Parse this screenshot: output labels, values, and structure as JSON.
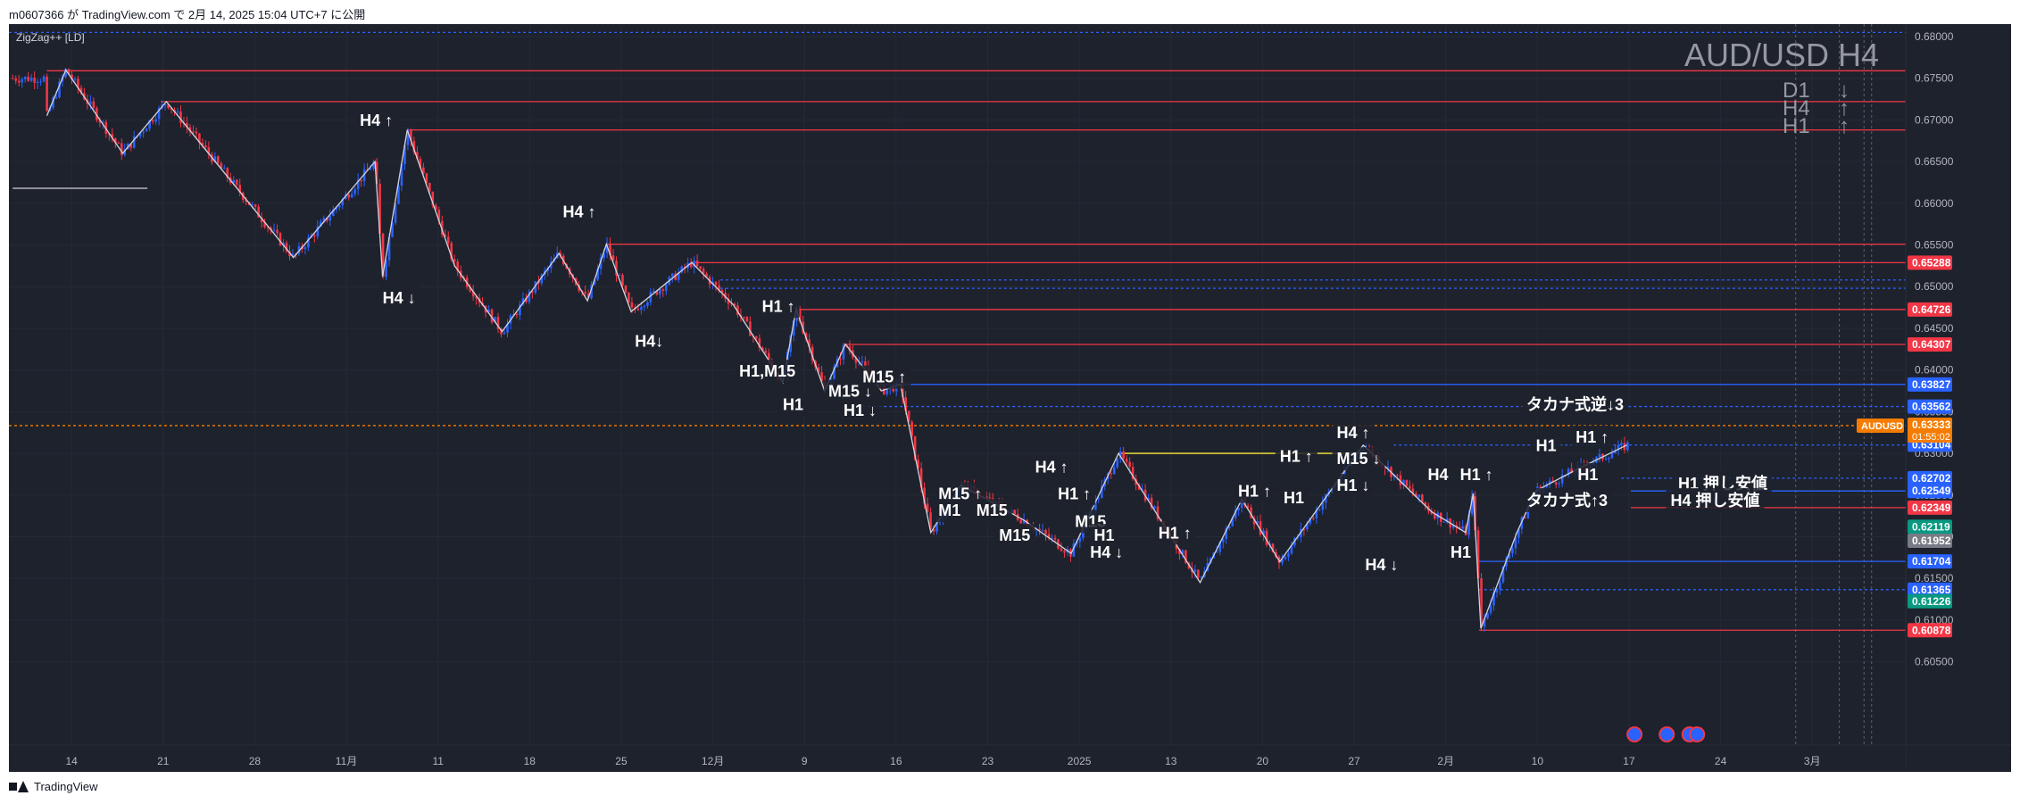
{
  "header": {
    "publisher_line": "m0607366 が TradingView.com で 2月 14, 2025 15:04 UTC+7 に公開"
  },
  "footer": {
    "brand": "TradingView"
  },
  "indicator": {
    "label": "ZigZag++ [LD]"
  },
  "colors": {
    "background": "#1e222d",
    "up": "#2962ff",
    "down": "#f23645",
    "resistance": "#f23645",
    "support": "#2962ff",
    "zigzag": "#d1d4dc",
    "grid": "#2a2e39",
    "price_label": "#f57c00"
  },
  "chart_data": {
    "type": "candlestick",
    "title": "AUD/USD H4",
    "symbol": "AUDUSD",
    "last_price": "0.63333",
    "countdown": "01:55:02",
    "ylim": [
      0.595,
      0.6815
    ],
    "y_ticks": [
      "0.68000",
      "0.67500",
      "0.67000",
      "0.66500",
      "0.66000",
      "0.65500",
      "0.65000",
      "0.64500",
      "0.64000",
      "0.63500",
      "0.63000",
      "0.62500",
      "0.62000",
      "0.61500",
      "0.61000",
      "0.60500"
    ],
    "x_ticks": [
      "14",
      "21",
      "28",
      "11月",
      "11",
      "18",
      "25",
      "12月",
      "9",
      "16",
      "23",
      "2025",
      "13",
      "20",
      "27",
      "2月",
      "10",
      "17",
      "24",
      "3月"
    ],
    "trend_summary": [
      {
        "tf": "D1",
        "arrow": "↓"
      },
      {
        "tf": "H4",
        "arrow": "↑"
      },
      {
        "tf": "H1",
        "arrow": "↑"
      }
    ],
    "price_tags": [
      {
        "value": "0.65288",
        "color": "#f23645"
      },
      {
        "value": "0.64726",
        "color": "#f23645"
      },
      {
        "value": "0.64307",
        "color": "#f23645"
      },
      {
        "value": "0.63827",
        "color": "#2962ff"
      },
      {
        "value": "0.63562",
        "color": "#2962ff"
      },
      {
        "value": "0.63104",
        "color": "#2962ff"
      },
      {
        "value": "0.62702",
        "color": "#2962ff"
      },
      {
        "value": "0.62549",
        "color": "#2962ff"
      },
      {
        "value": "0.62349",
        "color": "#f23645"
      },
      {
        "value": "0.62119",
        "color": "#089981"
      },
      {
        "value": "0.61952",
        "color": "#787b86"
      },
      {
        "value": "0.61704",
        "color": "#2962ff"
      },
      {
        "value": "0.61365",
        "color": "#2962ff"
      },
      {
        "value": "0.61226",
        "color": "#089981"
      },
      {
        "value": "0.60878",
        "color": "#f23645"
      }
    ],
    "levels": [
      {
        "price": 0.6805,
        "color": "#2962ff",
        "dashed": true,
        "x0": 0
      },
      {
        "price": 0.6759,
        "color": "#f23645",
        "x0": 0.02
      },
      {
        "price": 0.6722,
        "color": "#f23645",
        "x0": 0.08
      },
      {
        "price": 0.6688,
        "color": "#f23645",
        "x0": 0.21
      },
      {
        "price": 0.6551,
        "color": "#f23645",
        "x0": 0.315
      },
      {
        "price": 0.65288,
        "color": "#f23645",
        "x0": 0.36
      },
      {
        "price": 0.6508,
        "color": "#2962ff",
        "dashed": true,
        "x0": 0.375
      },
      {
        "price": 0.6498,
        "color": "#2962ff",
        "dashed": true,
        "x0": 0.375
      },
      {
        "price": 0.64726,
        "color": "#f23645",
        "x0": 0.415
      },
      {
        "price": 0.64307,
        "color": "#f23645",
        "x0": 0.44
      },
      {
        "price": 0.63827,
        "color": "#2962ff",
        "x0": 0.46
      },
      {
        "price": 0.63562,
        "color": "#2962ff",
        "dashed": true,
        "x0": 0.45
      },
      {
        "price": 0.63333,
        "color": "#f57c00",
        "dashed": true,
        "x0": 0
      },
      {
        "price": 0.631,
        "color": "#2962ff",
        "dashed": true,
        "x0": 0.73
      },
      {
        "price": 0.63,
        "color": "#ffeb3b",
        "x0": 0.585,
        "x1": 0.715
      },
      {
        "price": 0.62702,
        "color": "#2962ff",
        "dashed": true,
        "x0": 0.85
      },
      {
        "price": 0.62549,
        "color": "#2962ff",
        "x0": 0.855
      },
      {
        "price": 0.62349,
        "color": "#f23645",
        "x0": 0.855
      },
      {
        "price": 0.61704,
        "color": "#2962ff",
        "x0": 0.775
      },
      {
        "price": 0.61365,
        "color": "#2962ff",
        "dashed": true,
        "x0": 0.775
      },
      {
        "price": 0.60878,
        "color": "#f23645",
        "x0": 0.775
      }
    ],
    "zigzag": [
      [
        0.02,
        0.6705
      ],
      [
        0.03,
        0.676
      ],
      [
        0.06,
        0.666
      ],
      [
        0.083,
        0.6722
      ],
      [
        0.15,
        0.6535
      ],
      [
        0.193,
        0.665
      ],
      [
        0.197,
        0.6512
      ],
      [
        0.21,
        0.6688
      ],
      [
        0.235,
        0.6525
      ],
      [
        0.26,
        0.6446
      ],
      [
        0.29,
        0.654
      ],
      [
        0.305,
        0.6483
      ],
      [
        0.315,
        0.6551
      ],
      [
        0.328,
        0.647
      ],
      [
        0.36,
        0.6529
      ],
      [
        0.382,
        0.6478
      ],
      [
        0.408,
        0.6385
      ],
      [
        0.415,
        0.6473
      ],
      [
        0.43,
        0.6375
      ],
      [
        0.441,
        0.6431
      ],
      [
        0.46,
        0.6375
      ],
      [
        0.47,
        0.6383
      ],
      [
        0.486,
        0.6205
      ],
      [
        0.502,
        0.6262
      ],
      [
        0.535,
        0.622
      ],
      [
        0.56,
        0.618
      ],
      [
        0.585,
        0.63
      ],
      [
        0.628,
        0.6145
      ],
      [
        0.65,
        0.6245
      ],
      [
        0.67,
        0.617
      ],
      [
        0.714,
        0.631
      ],
      [
        0.75,
        0.623
      ],
      [
        0.768,
        0.6205
      ],
      [
        0.772,
        0.6252
      ],
      [
        0.776,
        0.609
      ],
      [
        0.795,
        0.6205
      ],
      [
        0.805,
        0.6255
      ],
      [
        0.826,
        0.628
      ],
      [
        0.853,
        0.631
      ]
    ],
    "annotations": [
      {
        "text": "H4 ↑",
        "x": 0.185,
        "y": 0.6693
      },
      {
        "text": "H4 ↓",
        "x": 0.197,
        "y": 0.648
      },
      {
        "text": "H4 ↑",
        "x": 0.292,
        "y": 0.6583
      },
      {
        "text": "H4↓",
        "x": 0.33,
        "y": 0.6428
      },
      {
        "text": "H1 ↑",
        "x": 0.397,
        "y": 0.647
      },
      {
        "text": "H1,M15",
        "x": 0.385,
        "y": 0.6392
      },
      {
        "text": "H1",
        "x": 0.408,
        "y": 0.6352
      },
      {
        "text": "M15 ↓",
        "x": 0.432,
        "y": 0.6368
      },
      {
        "text": "M15 ↑",
        "x": 0.45,
        "y": 0.6385
      },
      {
        "text": "H1 ↓",
        "x": 0.44,
        "y": 0.6345
      },
      {
        "text": "H4 ↑",
        "x": 0.541,
        "y": 0.6277
      },
      {
        "text": "H1 ↑",
        "x": 0.553,
        "y": 0.6245
      },
      {
        "text": "M15 ↑",
        "x": 0.49,
        "y": 0.6245
      },
      {
        "text": "M1",
        "x": 0.49,
        "y": 0.6225
      },
      {
        "text": "M15",
        "x": 0.51,
        "y": 0.6225
      },
      {
        "text": "M15",
        "x": 0.522,
        "y": 0.6195
      },
      {
        "text": "M15",
        "x": 0.562,
        "y": 0.6212
      },
      {
        "text": "H1",
        "x": 0.572,
        "y": 0.6195
      },
      {
        "text": "H1 ↑",
        "x": 0.606,
        "y": 0.6198
      },
      {
        "text": "H4 ↓",
        "x": 0.57,
        "y": 0.6175
      },
      {
        "text": "H1 ↑",
        "x": 0.648,
        "y": 0.6248
      },
      {
        "text": "H1",
        "x": 0.672,
        "y": 0.624
      },
      {
        "text": "H1 ↑",
        "x": 0.67,
        "y": 0.629
      },
      {
        "text": "M15 ↓",
        "x": 0.7,
        "y": 0.6287
      },
      {
        "text": "H1 ↓",
        "x": 0.7,
        "y": 0.6255
      },
      {
        "text": "H4 ↑",
        "x": 0.7,
        "y": 0.6318
      },
      {
        "text": "H4",
        "x": 0.748,
        "y": 0.6268
      },
      {
        "text": "H1 ↑",
        "x": 0.765,
        "y": 0.6268
      },
      {
        "text": "H1",
        "x": 0.76,
        "y": 0.6175
      },
      {
        "text": "H4    ↓",
        "x": 0.715,
        "y": 0.616
      },
      {
        "text": "H1",
        "x": 0.805,
        "y": 0.6303
      },
      {
        "text": "H1 ↑",
        "x": 0.826,
        "y": 0.6313
      },
      {
        "text": "H1",
        "x": 0.827,
        "y": 0.6268
      },
      {
        "text": "タカナ式逆↓3",
        "x": 0.8,
        "y": 0.6352
      },
      {
        "text": "タカナ式↑3",
        "x": 0.8,
        "y": 0.6237
      },
      {
        "text": "H1 押し安値",
        "x": 0.88,
        "y": 0.6257
      },
      {
        "text": "H4 押し安値",
        "x": 0.876,
        "y": 0.6237
      }
    ]
  }
}
